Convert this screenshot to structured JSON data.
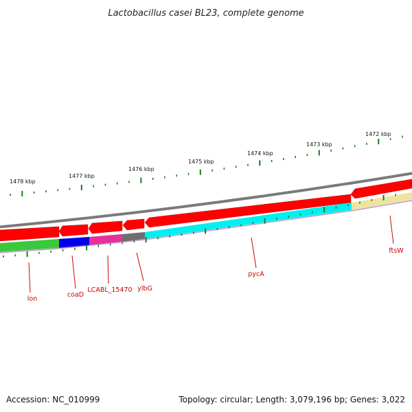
{
  "title": "Lactobacillus casei BL23, complete genome",
  "footer": {
    "accession": "Accession: NC_010999",
    "summary": "Topology: circular; Length: 3,079,196 bp; Genes: 3,022"
  },
  "colors": {
    "backbone": "#7a7a7a",
    "forward_gene": "#ff0000",
    "tick": "#1a7a1a",
    "leader": "#cc0000"
  },
  "scale_labels": [
    "1478 kbp",
    "1477 kbp",
    "1476 kbp",
    "1475 kbp",
    "1474 kbp",
    "1473 kbp",
    "1472 kbp"
  ],
  "reverse_features": [
    {
      "name": "lon",
      "color": "#3cc83c"
    },
    {
      "name": "coaD",
      "color": "#0000ee"
    },
    {
      "name": "LCABL_15470",
      "color": "#e8309a"
    },
    {
      "name": "ylbG",
      "color": "#6e6e6e"
    },
    {
      "name": "pycA",
      "color": "#00f0f0"
    },
    {
      "name": "ftsW",
      "color": "#eee4a0"
    }
  ],
  "gene_labels": [
    "lon",
    "coaD",
    "LCABL_15470",
    "ylbG",
    "pycA",
    "ftsW"
  ]
}
